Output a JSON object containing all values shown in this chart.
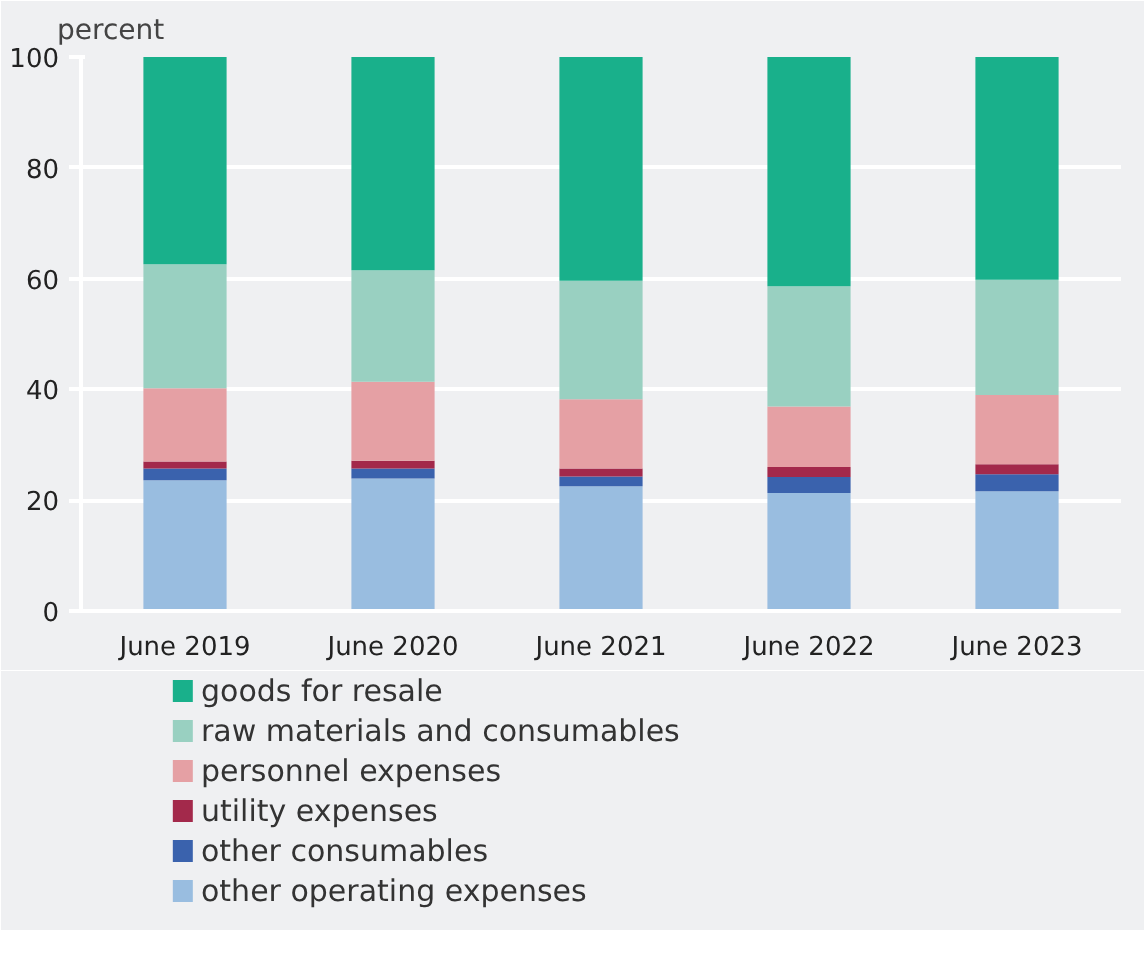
{
  "chart_data": {
    "type": "bar",
    "stacked": true,
    "ylabel": "percent",
    "categories": [
      "June 2019",
      "June 2020",
      "June 2021",
      "June 2022",
      "June 2023"
    ],
    "series": [
      {
        "name": "other operating expenses",
        "color": "#99bde0",
        "values": [
          23.6,
          23.9,
          22.5,
          21.3,
          21.6
        ]
      },
      {
        "name": "other consumables",
        "color": "#3a62ad",
        "values": [
          2.1,
          1.8,
          1.8,
          2.9,
          3.1
        ]
      },
      {
        "name": "utility expenses",
        "color": "#a3294b",
        "values": [
          1.3,
          1.4,
          1.4,
          1.8,
          1.8
        ]
      },
      {
        "name": "personnel expenses",
        "color": "#e5a0a4",
        "values": [
          13.2,
          14.3,
          12.5,
          10.9,
          12.5
        ]
      },
      {
        "name": "raw materials and consumables",
        "color": "#99d0c1",
        "values": [
          22.4,
          20.1,
          21.4,
          21.7,
          20.8
        ]
      },
      {
        "name": "goods for resale",
        "color": "#19b08b",
        "values": [
          37.4,
          38.5,
          40.4,
          41.4,
          40.2
        ]
      }
    ],
    "ylim": [
      0,
      100
    ],
    "yticks": [
      0,
      20,
      40,
      60,
      80,
      100
    ],
    "grid": "y",
    "legend": "bottom"
  }
}
